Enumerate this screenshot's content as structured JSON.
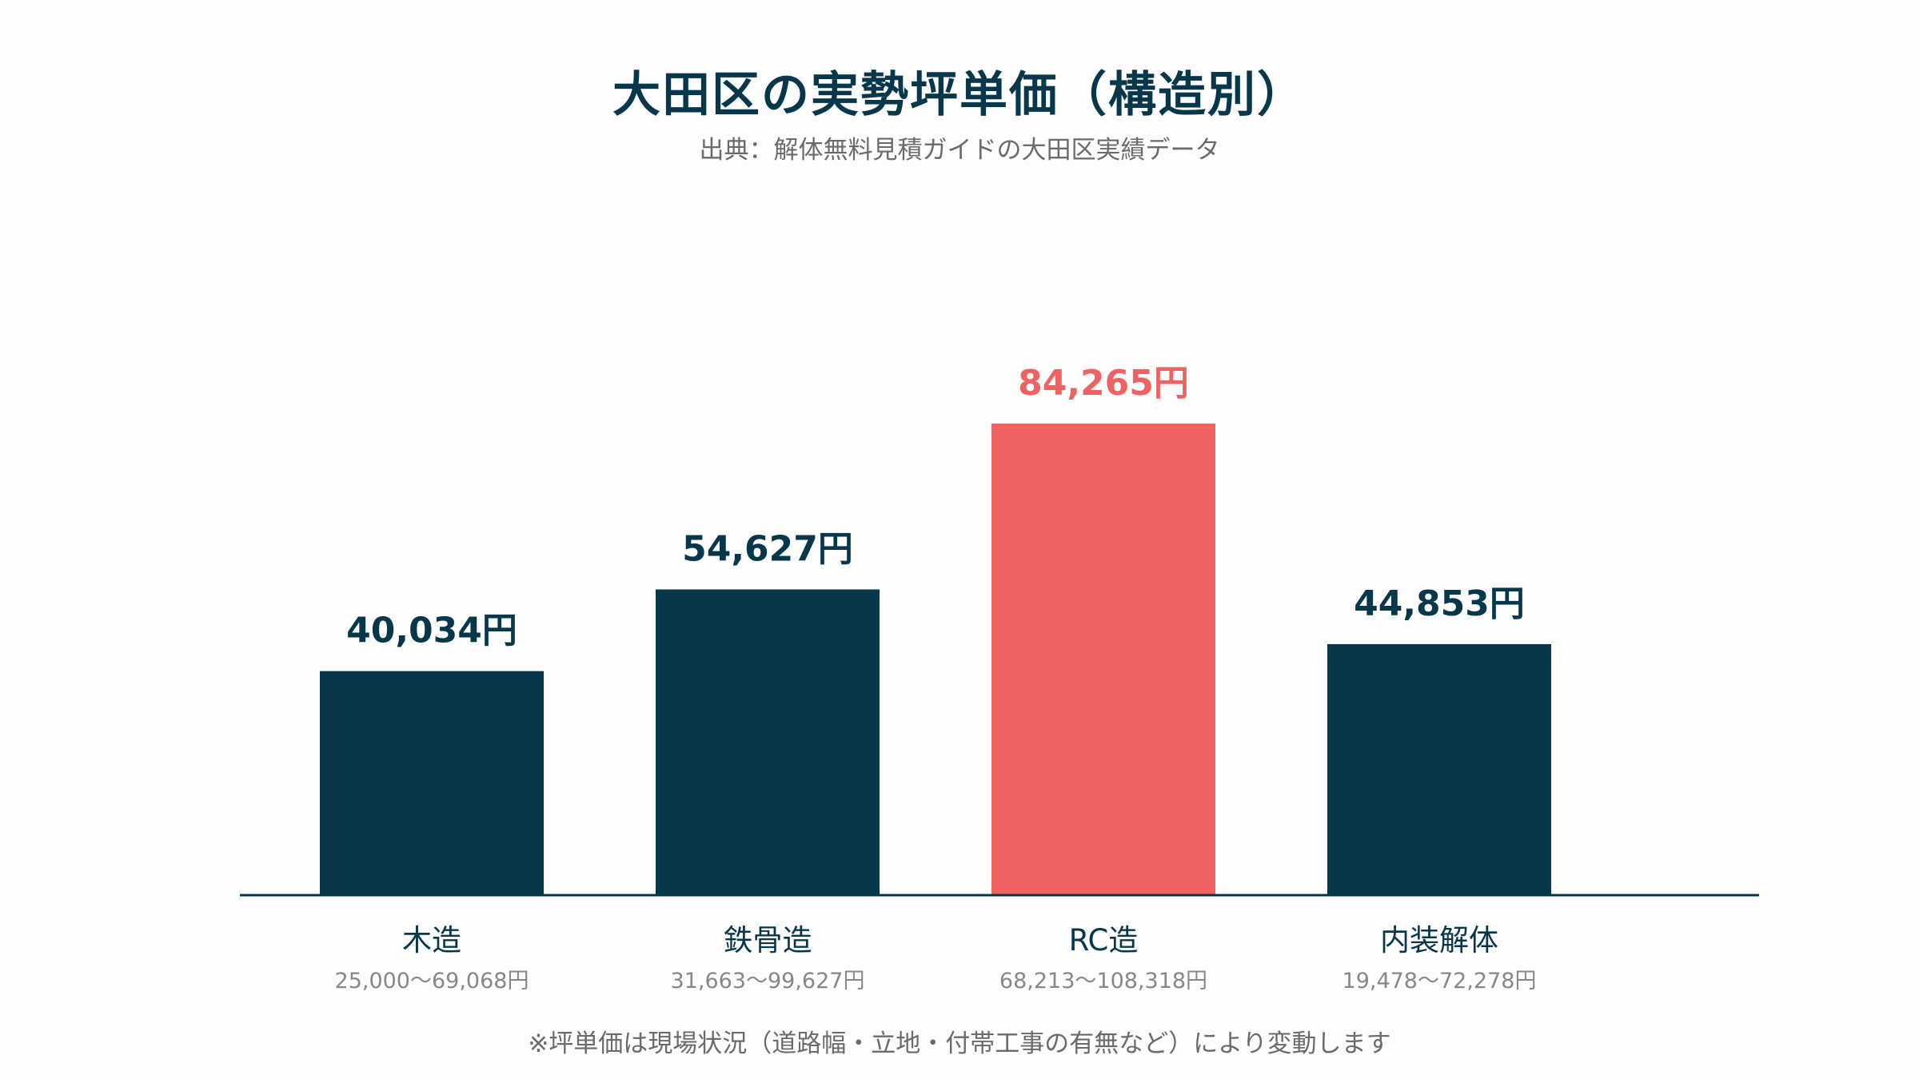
{
  "chart_data": {
    "type": "bar",
    "title": "大田区の実勢坪単価（構造別）",
    "subtitle": "出典：解体無料見積ガイドの大田区実績データ",
    "categories": [
      "木造",
      "鉄骨造",
      "RC造",
      "内装解体"
    ],
    "values": [
      40034,
      54627,
      84265,
      44853
    ],
    "value_labels": [
      "40,034円",
      "54,627円",
      "84,265円",
      "44,853円"
    ],
    "range_labels": [
      "25,000〜69,068円",
      "31,663〜99,627円",
      "68,213〜108,318円",
      "19,478〜72,278円"
    ],
    "highlight_index": 2,
    "ylim": [
      0,
      100000
    ],
    "grid": false,
    "legend": "none",
    "colors": {
      "bar": "#06374b",
      "highlight": "#f06262",
      "axis": "#06374b"
    },
    "footnote": "※坪単価は現場状況（道路幅・立地・付帯工事の有無など）により変動します"
  }
}
